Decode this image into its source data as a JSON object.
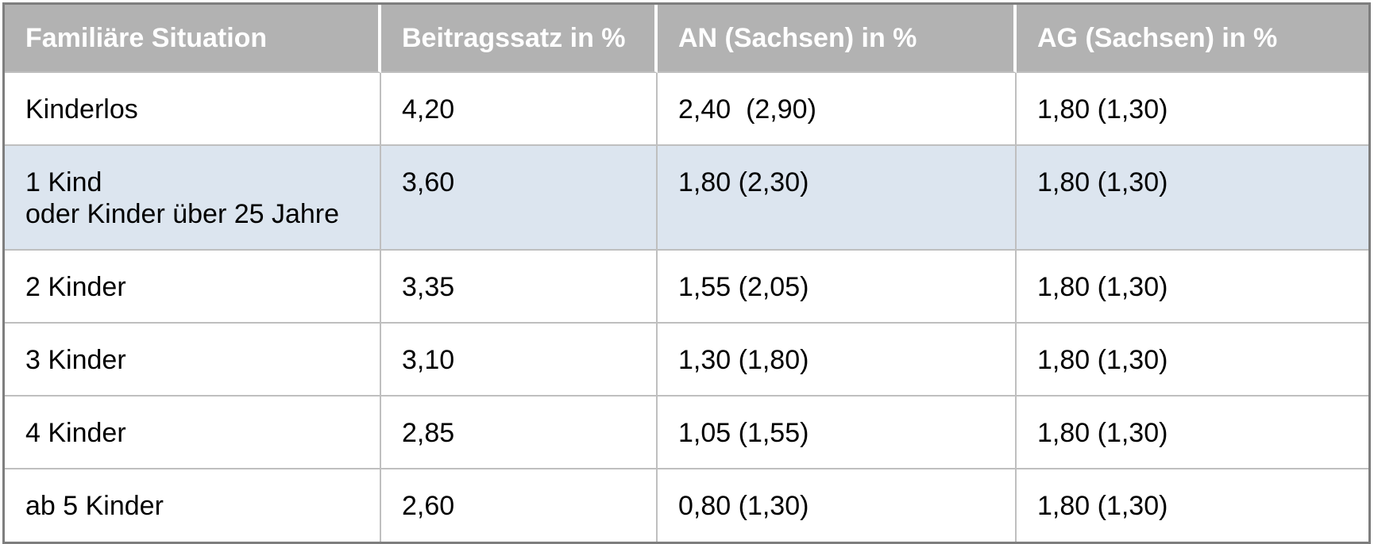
{
  "chart_data": {
    "type": "table",
    "title": "",
    "columns": [
      "Familiäre Situation",
      "Beitragssatz in %",
      "AN (Sachsen) in %",
      "AG (Sachsen) in %"
    ],
    "rows": [
      {
        "situation": "Kinderlos",
        "beitragssatz": "4,20",
        "an": "2,40  (2,90)",
        "ag": "1,80 (1,30)",
        "highlighted": false
      },
      {
        "situation": "1 Kind\noder Kinder über 25 Jahre",
        "beitragssatz": "3,60",
        "an": "1,80 (2,30)",
        "ag": "1,80 (1,30)",
        "highlighted": true
      },
      {
        "situation": "2 Kinder",
        "beitragssatz": "3,35",
        "an": "1,55 (2,05)",
        "ag": "1,80 (1,30)",
        "highlighted": false
      },
      {
        "situation": "3 Kinder",
        "beitragssatz": "3,10",
        "an": "1,30 (1,80)",
        "ag": "1,80 (1,30)",
        "highlighted": false
      },
      {
        "situation": "4 Kinder",
        "beitragssatz": "2,85",
        "an": "1,05 (1,55)",
        "ag": "1,80 (1,30)",
        "highlighted": false
      },
      {
        "situation": "ab 5 Kinder",
        "beitragssatz": "2,60",
        "an": "0,80 (1,30)",
        "ag": "1,80 (1,30)",
        "highlighted": false
      }
    ]
  },
  "table": {
    "header": {
      "col1": "Familiäre Situation",
      "col2": "Beitragssatz in %",
      "col3": "AN (Sachsen) in %",
      "col4": "AG (Sachsen) in %"
    },
    "colors": {
      "header_bg": "#b2b2b2",
      "header_text": "#ffffff",
      "highlight_row_bg": "#dce5ef",
      "row_bg": "#ffffff",
      "body_text": "#000000",
      "grid_line": "#bfbfbf",
      "outer_border": "#7e7e7e"
    }
  }
}
